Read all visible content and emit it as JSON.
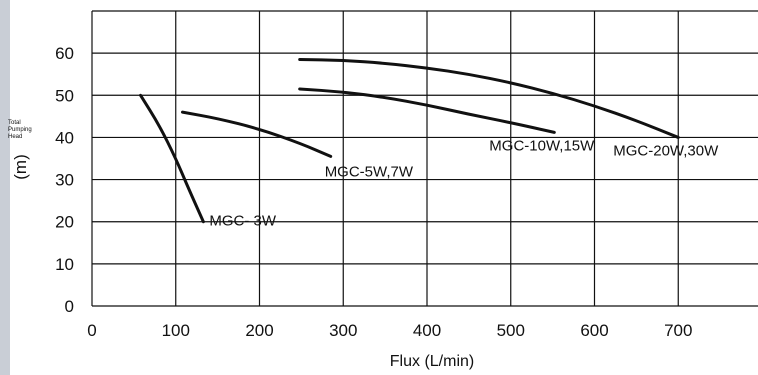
{
  "chart_data": {
    "type": "line",
    "title": "",
    "xlabel": "Flux (L/min)",
    "ylabel_lines": [
      "Total",
      "Pumping",
      "Head"
    ],
    "ylabel_unit": "(m)",
    "xlim": [
      0,
      800
    ],
    "ylim": [
      0,
      70
    ],
    "xticks": [
      0,
      100,
      200,
      300,
      400,
      500,
      600,
      700
    ],
    "yticks": [
      0,
      10,
      20,
      30,
      40,
      50,
      60
    ],
    "grid": true,
    "series": [
      {
        "name": "MGC- 3W",
        "x": [
          58,
          80,
          100,
          115,
          133
        ],
        "y": [
          50,
          43,
          35,
          28,
          20
        ]
      },
      {
        "name": "MGC-5W,7W",
        "x": [
          108,
          150,
          200,
          250,
          285
        ],
        "y": [
          46,
          44.5,
          42,
          38.5,
          35.5
        ]
      },
      {
        "name": "MGC-10W,15W",
        "x": [
          248,
          300,
          350,
          400,
          450,
          500,
          552
        ],
        "y": [
          51.5,
          50.8,
          49.5,
          47.7,
          45.5,
          43.5,
          41.2
        ]
      },
      {
        "name": "MGC-20W,30W",
        "x": [
          248,
          300,
          350,
          400,
          450,
          500,
          550,
          600,
          650,
          700
        ],
        "y": [
          58.5,
          58.3,
          57.6,
          56.5,
          55,
          53,
          50.5,
          47.5,
          44,
          40
        ]
      }
    ]
  }
}
